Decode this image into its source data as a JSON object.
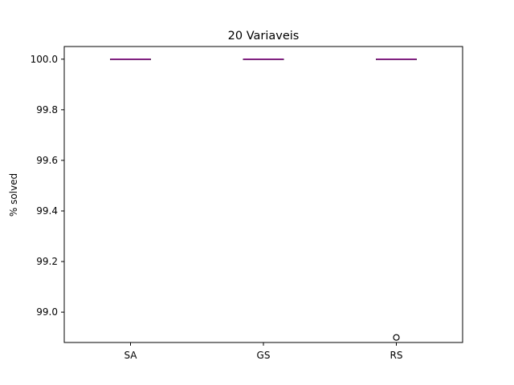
{
  "chart_data": {
    "type": "box",
    "title": "20 Variaveis",
    "xlabel": "",
    "ylabel": "% solved",
    "categories": [
      "SA",
      "GS",
      "RS"
    ],
    "ylim": [
      98.88,
      100.05
    ],
    "yticks": [
      "99.0",
      "99.2",
      "99.4",
      "99.6",
      "99.8",
      "100.0"
    ],
    "grid": false,
    "series": [
      {
        "category": "SA",
        "min": 100.0,
        "q1": 100.0,
        "median": 100.0,
        "q3": 100.0,
        "max": 100.0,
        "outliers": []
      },
      {
        "category": "GS",
        "min": 100.0,
        "q1": 100.0,
        "median": 100.0,
        "q3": 100.0,
        "max": 100.0,
        "outliers": []
      },
      {
        "category": "RS",
        "min": 100.0,
        "q1": 100.0,
        "median": 100.0,
        "q3": 100.0,
        "max": 100.0,
        "outliers": [
          98.9
        ]
      }
    ],
    "colors": {
      "median": "#800080",
      "box": "#000000",
      "outlier": "#000000"
    }
  }
}
